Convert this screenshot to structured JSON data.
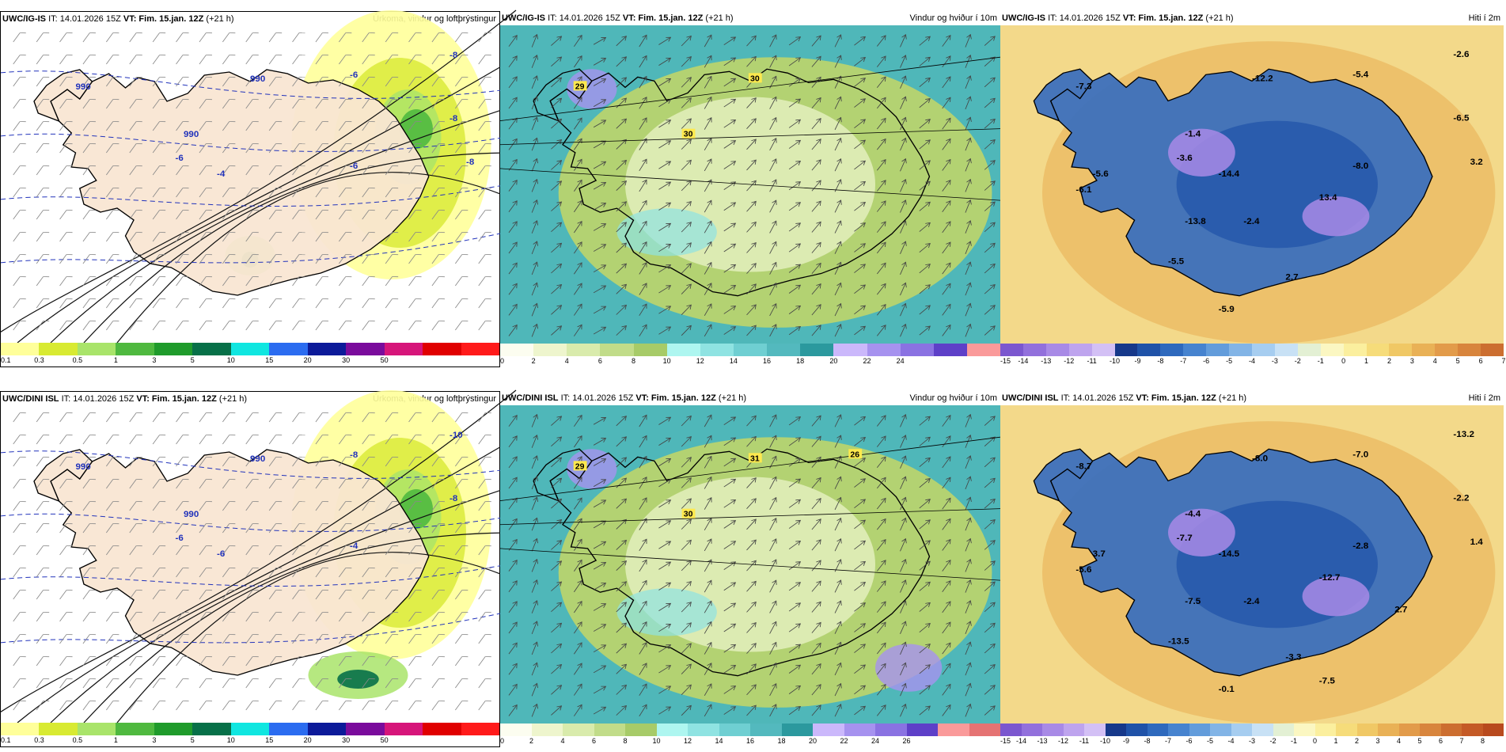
{
  "panels": [
    {
      "id": "p1",
      "kind": "precip",
      "model": "UWC/IG-IS",
      "it_label": "IT: 14.01.2026 15Z",
      "vt_label": "VT: Fim. 15.jan. 12Z",
      "lead": "(+21 h)",
      "title": "Úrkoma, vindur og loftþrýstingur",
      "colorbar": {
        "colors": [
          "#ffff9a",
          "#d8ea32",
          "#a9e46a",
          "#4fb93f",
          "#1f9b2b",
          "#077048",
          "#10e6e0",
          "#2b6cf0",
          "#0c1a99",
          "#7a0b9c",
          "#d6157a",
          "#e00000",
          "#ff1a1a"
        ],
        "labels": [
          "0.1",
          "0.3",
          "0.5",
          "1",
          "3",
          "5",
          "10",
          "15",
          "20",
          "30",
          "50"
        ]
      },
      "map_labels": [
        "990",
        "990",
        "990",
        "-6",
        "-8",
        "-8",
        "-6",
        "-4",
        "-6",
        "-8"
      ]
    },
    {
      "id": "p2",
      "kind": "wind",
      "model": "UWC/IG-IS",
      "it_label": "IT: 14.01.2026 15Z",
      "vt_label": "VT: Fim. 15.jan. 12Z",
      "lead": "(+21 h)",
      "title": "Vindur og hviður í 10m",
      "colorbar": {
        "colors": [
          "#fcfdf0",
          "#eef5cd",
          "#d9ebac",
          "#c1dc89",
          "#a7cb68",
          "#aef6f0",
          "#8fe3e2",
          "#6fcfd2",
          "#53b9be",
          "#2b999e",
          "#cbb8fb",
          "#a692ef",
          "#8a72e2",
          "#5e40c8",
          "#fa9a9a"
        ],
        "labels": [
          "0",
          "2",
          "4",
          "6",
          "8",
          "10",
          "12",
          "14",
          "16",
          "18",
          "20",
          "22",
          "24"
        ]
      },
      "map_labels": [
        "29",
        "30",
        "30"
      ]
    },
    {
      "id": "p3",
      "kind": "temp",
      "model": "UWC/IG-IS",
      "it_label": "IT: 14.01.2026 15Z",
      "vt_label": "VT: Fim. 15.jan. 12Z",
      "lead": "(+21 h)",
      "title": "Hiti í 2m",
      "colorbar": {
        "colors": [
          "#7b57cf",
          "#9270dc",
          "#a88ae6",
          "#bea4ee",
          "#d3c0f5",
          "#16388a",
          "#1f52a8",
          "#2e69bd",
          "#4683cf",
          "#629cdb",
          "#82b4e6",
          "#a6cdf0",
          "#c8e1f5",
          "#e3f0d4",
          "#fbf7c2",
          "#fbef9e",
          "#f6dc7a",
          "#f0c865",
          "#e9b156",
          "#e29b4a",
          "#d8853d",
          "#cc6e30"
        ],
        "labels": [
          "-15",
          "-14",
          "-13",
          "-12",
          "-11",
          "-10",
          "-9",
          "-8",
          "-7",
          "-6",
          "-5",
          "-4",
          "-3",
          "-2",
          "-1",
          "0",
          "1",
          "2",
          "3",
          "4",
          "5",
          "6",
          "7"
        ]
      },
      "map_labels": [
        "-7.3",
        "-12.2",
        "-1.4",
        "-5.4",
        "-2.6",
        "-6.5",
        "-3.6",
        "-14.4",
        "-8.0",
        "3.2",
        "-6.1",
        "-13.8",
        "-2.4",
        "13.4",
        "-5.5",
        "2.7",
        "-5.9",
        "-5.6"
      ]
    },
    {
      "id": "p4",
      "kind": "precip",
      "model": "UWC/DINI ISL",
      "it_label": "IT: 14.01.2026 15Z",
      "vt_label": "VT: Fim. 15.jan. 12Z",
      "lead": "(+21 h)",
      "title": "Úrkoma, vindur og loftþrýstingur",
      "colorbar": {
        "colors": [
          "#ffff9a",
          "#d8ea32",
          "#a9e46a",
          "#4fb93f",
          "#1f9b2b",
          "#077048",
          "#10e6e0",
          "#2b6cf0",
          "#0c1a99",
          "#7a0b9c",
          "#d6157a",
          "#e00000",
          "#ff1a1a"
        ],
        "labels": [
          "0.1",
          "0.3",
          "0.5",
          "1",
          "3",
          "5",
          "10",
          "15",
          "20",
          "30",
          "50"
        ]
      },
      "map_labels": [
        "990",
        "990",
        "990",
        "-8",
        "-10",
        "-8",
        "-6",
        "-6",
        "-4"
      ]
    },
    {
      "id": "p5",
      "kind": "wind",
      "model": "UWC/DINI ISL",
      "it_label": "IT: 14.01.2026 15Z",
      "vt_label": "VT: Fim. 15.jan. 12Z",
      "lead": "(+21 h)",
      "title": "Vindur og hviður í 10m",
      "colorbar": {
        "colors": [
          "#fcfdf0",
          "#eef5cd",
          "#d9ebac",
          "#c1dc89",
          "#a7cb68",
          "#aef6f0",
          "#8fe3e2",
          "#6fcfd2",
          "#53b9be",
          "#2b999e",
          "#cbb8fb",
          "#a692ef",
          "#8a72e2",
          "#5e40c8",
          "#fa9a9a",
          "#e57373"
        ],
        "labels": [
          "0",
          "2",
          "4",
          "6",
          "8",
          "10",
          "12",
          "14",
          "16",
          "18",
          "20",
          "22",
          "24",
          "26"
        ]
      },
      "map_labels": [
        "29",
        "31",
        "30",
        "26"
      ]
    },
    {
      "id": "p6",
      "kind": "temp",
      "model": "UWC/DINI ISL",
      "it_label": "IT: 14.01.2026 15Z",
      "vt_label": "VT: Fim. 15.jan. 12Z",
      "lead": "(+21 h)",
      "title": "Hiti í 2m",
      "colorbar": {
        "colors": [
          "#7b57cf",
          "#9270dc",
          "#a88ae6",
          "#bea4ee",
          "#d3c0f5",
          "#16388a",
          "#1f52a8",
          "#2e69bd",
          "#4683cf",
          "#629cdb",
          "#82b4e6",
          "#a6cdf0",
          "#c8e1f5",
          "#e3f0d4",
          "#fbf7c2",
          "#fbef9e",
          "#f6dc7a",
          "#f0c865",
          "#e9b156",
          "#e29b4a",
          "#d8853d",
          "#cc6e30",
          "#c45a26",
          "#b84a1e"
        ],
        "labels": [
          "-15",
          "-14",
          "-13",
          "-12",
          "-11",
          "-10",
          "-9",
          "-8",
          "-7",
          "-6",
          "-5",
          "-4",
          "-3",
          "-2",
          "-1",
          "0",
          "1",
          "2",
          "3",
          "4",
          "5",
          "6",
          "7",
          "8"
        ]
      },
      "map_labels": [
        "-8.7",
        "-8.0",
        "-4.4",
        "-7.0",
        "-13.2",
        "-2.2",
        "-7.7",
        "-14.5",
        "-2.8",
        "1.4",
        "-5.6",
        "-7.5",
        "-2.4",
        "-12.7",
        "-13.5",
        "-3.3",
        "-0.1",
        "3.7",
        "2.7",
        "-7.5"
      ]
    }
  ],
  "icons": {
    "wind_barb": "wind-barb-icon",
    "wind_arrow": "wind-arrow-icon"
  }
}
